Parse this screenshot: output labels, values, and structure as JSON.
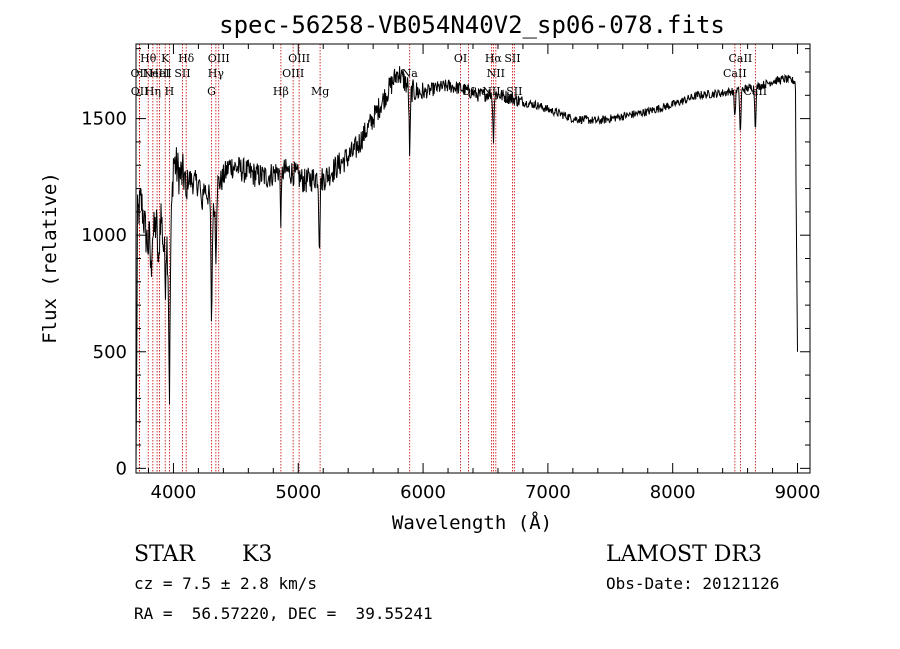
{
  "chart_data": {
    "type": "line",
    "title": "spec-56258-VB054N40V2_sp06-078.fits",
    "xlabel": "Wavelength (Å)",
    "ylabel": "Flux (relative)",
    "xlim": [
      3700,
      9100
    ],
    "ylim": [
      -20,
      1820
    ],
    "xticks": [
      4000,
      5000,
      6000,
      7000,
      8000,
      9000
    ],
    "yticks": [
      0,
      500,
      1000,
      1500
    ],
    "grid": false,
    "series_color": "#000000",
    "line_marker_color": "#cc0000",
    "spectrum_anchors": {
      "x": [
        3700,
        3720,
        3740,
        3760,
        3780,
        3800,
        3820,
        3840,
        3860,
        3880,
        3900,
        3920,
        3940,
        3960,
        3970,
        3980,
        4000,
        4050,
        4100,
        4150,
        4200,
        4250,
        4300,
        4320,
        4340,
        4380,
        4450,
        4550,
        4650,
        4750,
        4850,
        4950,
        5050,
        5150,
        5200,
        5300,
        5450,
        5600,
        5700,
        5800,
        5850,
        5900,
        6000,
        6100,
        6200,
        6300,
        6350,
        6450,
        6560,
        6620,
        6700,
        6800,
        6900,
        7000,
        7200,
        7400,
        7600,
        7800,
        8000,
        8200,
        8400,
        8500,
        8600,
        8700,
        8800,
        8900,
        8980,
        9000
      ],
      "y": [
        1050,
        1100,
        1150,
        1080,
        1000,
        950,
        1080,
        1000,
        1050,
        1000,
        1100,
        950,
        1050,
        850,
        800,
        1000,
        1320,
        1260,
        1250,
        1230,
        1220,
        1200,
        1150,
        1100,
        1220,
        1230,
        1300,
        1280,
        1260,
        1250,
        1280,
        1270,
        1230,
        1250,
        1240,
        1290,
        1360,
        1500,
        1600,
        1700,
        1660,
        1620,
        1610,
        1630,
        1640,
        1630,
        1620,
        1600,
        1610,
        1600,
        1590,
        1570,
        1560,
        1540,
        1500,
        1490,
        1510,
        1530,
        1560,
        1600,
        1610,
        1620,
        1630,
        1640,
        1660,
        1670,
        1660,
        1500
      ]
    },
    "absorption_dips": [
      {
        "x": 3820,
        "depth": 250
      },
      {
        "x": 3880,
        "depth": 180
      },
      {
        "x": 3935,
        "depth": 220
      },
      {
        "x": 3968,
        "depth": 480
      },
      {
        "x": 4102,
        "depth": 100
      },
      {
        "x": 4226,
        "depth": 120
      },
      {
        "x": 4305,
        "depth": 500
      },
      {
        "x": 4340,
        "depth": 300
      },
      {
        "x": 4861,
        "depth": 200
      },
      {
        "x": 5170,
        "depth": 280
      },
      {
        "x": 5893,
        "depth": 270
      },
      {
        "x": 6563,
        "depth": 190
      },
      {
        "x": 8498,
        "depth": 110
      },
      {
        "x": 8542,
        "depth": 190
      },
      {
        "x": 8662,
        "depth": 170
      }
    ],
    "spectral_lines": [
      {
        "x": 3727,
        "label": "OII",
        "row": 1
      },
      {
        "x": 3729,
        "label": "OII",
        "row": 2
      },
      {
        "x": 3798,
        "label": "Hθ",
        "row": 0
      },
      {
        "x": 3835,
        "label": "Hη",
        "row": 2
      },
      {
        "x": 3869,
        "label": "NeIII",
        "row": 1
      },
      {
        "x": 3889,
        "label": "HeI",
        "row": 1
      },
      {
        "x": 3934,
        "label": "K",
        "row": 0
      },
      {
        "x": 3968,
        "label": "H",
        "row": 2
      },
      {
        "x": 4072,
        "label": "SII",
        "row": 1
      },
      {
        "x": 4102,
        "label": "Hδ",
        "row": 0
      },
      {
        "x": 4305,
        "label": "G",
        "row": 2
      },
      {
        "x": 4340,
        "label": "Hγ",
        "row": 1
      },
      {
        "x": 4363,
        "label": "OIII",
        "row": 0
      },
      {
        "x": 4861,
        "label": "Hβ",
        "row": 2
      },
      {
        "x": 4959,
        "label": "OIII",
        "row": 1
      },
      {
        "x": 5007,
        "label": "OIII",
        "row": 0
      },
      {
        "x": 5175,
        "label": "Mg",
        "row": 2
      },
      {
        "x": 5893,
        "label": "Na",
        "row": 1
      },
      {
        "x": 6300,
        "label": "OI",
        "row": 0
      },
      {
        "x": 6364,
        "label": "OI",
        "row": 2
      },
      {
        "x": 6548,
        "label": "NII",
        "row": 2
      },
      {
        "x": 6563,
        "label": "Hα",
        "row": 0
      },
      {
        "x": 6583,
        "label": "NII",
        "row": 1
      },
      {
        "x": 6716,
        "label": "SII",
        "row": 0
      },
      {
        "x": 6731,
        "label": "SII",
        "row": 2
      },
      {
        "x": 8498,
        "label": "CaII",
        "row": 1
      },
      {
        "x": 8542,
        "label": "CaII",
        "row": 0
      },
      {
        "x": 8662,
        "label": "CaII",
        "row": 2
      }
    ]
  },
  "info": {
    "object_class": "STAR",
    "subclass": "K3",
    "survey": "LAMOST DR3",
    "redshift_text": "cz = 7.5 ± 2.8 km/s",
    "obs_date": "Obs-Date: 20121126",
    "coords": "RA =  56.57220, DEC =  39.55241"
  }
}
